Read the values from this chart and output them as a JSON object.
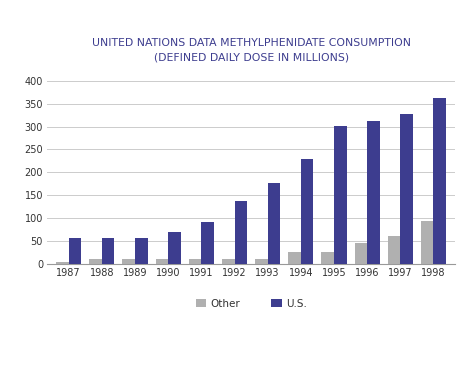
{
  "title_line1": "UNITED NATIONS DATA METHYLPHENIDATE CONSUMPTION",
  "title_line2": "(DEFINED DAILY DOSE IN MILLIONS)",
  "years": [
    "1987",
    "1988",
    "1989",
    "1990",
    "1991",
    "1992",
    "1993",
    "1994",
    "1995",
    "1996",
    "1997",
    "1998"
  ],
  "other": [
    5,
    12,
    12,
    12,
    12,
    12,
    12,
    27,
    27,
    47,
    62,
    95
  ],
  "us": [
    58,
    58,
    58,
    70,
    93,
    138,
    178,
    230,
    301,
    311,
    328,
    363
  ],
  "other_color": "#b0b0b0",
  "us_color": "#3d3d8f",
  "title_color": "#3d3d8f",
  "bg_color": "#ffffff",
  "ylim": [
    0,
    420
  ],
  "yticks": [
    0,
    50,
    100,
    150,
    200,
    250,
    300,
    350,
    400
  ],
  "legend_labels": [
    "Other",
    "U.S."
  ],
  "bar_width": 0.38,
  "grid_color": "#cccccc",
  "tick_fontsize": 7.0,
  "title_fontsize": 7.8
}
